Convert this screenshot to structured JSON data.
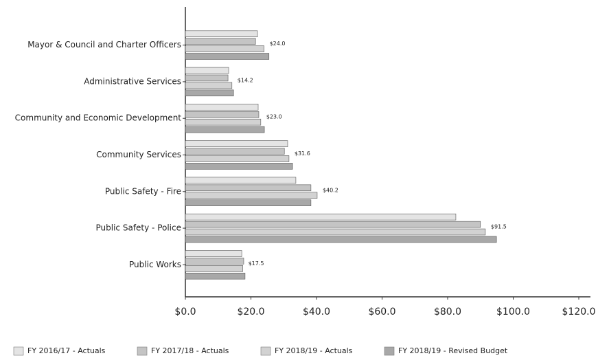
{
  "chart_data": {
    "type": "bar",
    "orientation": "horizontal",
    "categories": [
      "Mayor & Council and Charter Officers",
      "Administrative Services",
      "Community and Economic Development",
      "Community Services",
      "Public Safety - Fire",
      "Public Safety - Police",
      "Public Works"
    ],
    "series": [
      {
        "name": "FY 2016/17 - Actuals",
        "color": "#e4e4e4",
        "values": [
          22.0,
          13.2,
          22.2,
          31.2,
          33.7,
          82.5,
          17.2
        ]
      },
      {
        "name": "FY 2017/18 - Actuals",
        "color": "#c4c4c4",
        "values": [
          21.4,
          13.0,
          22.4,
          30.2,
          38.3,
          90.0,
          17.8
        ]
      },
      {
        "name": "FY 2018/19 - Actuals",
        "color": "#d2d2d2",
        "values": [
          24.0,
          14.2,
          23.0,
          31.6,
          40.2,
          91.5,
          17.5
        ],
        "value_labels": [
          "$24.0",
          "$14.2",
          "$23.0",
          "$31.6",
          "$40.2",
          "$91.5",
          "$17.5"
        ]
      },
      {
        "name": "FY 2018/19 - Revised Budget",
        "color": "#a8a8a8",
        "values": [
          25.5,
          14.7,
          24.1,
          32.7,
          38.3,
          94.9,
          18.2
        ]
      }
    ],
    "xlim": [
      0,
      120
    ],
    "xticks": [
      {
        "value": 0,
        "label": "$0.0"
      },
      {
        "value": 20,
        "label": "$20.0"
      },
      {
        "value": 40,
        "label": "$40.0"
      },
      {
        "value": 60,
        "label": "$60.0"
      },
      {
        "value": 80,
        "label": "$80.0"
      },
      {
        "value": 100,
        "label": "$100.0"
      },
      {
        "value": 120,
        "label": "$120.0"
      }
    ]
  }
}
